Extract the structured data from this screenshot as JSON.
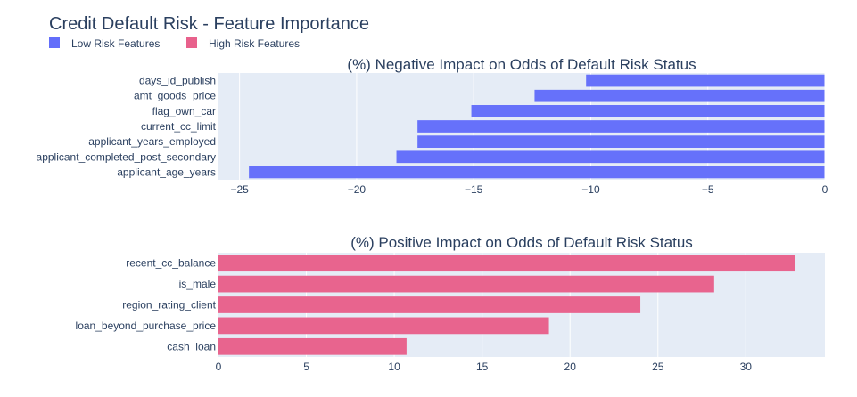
{
  "title": "Credit Default Risk - Feature Importance",
  "legend": [
    {
      "label": "Low Risk Features",
      "color": "#636efa"
    },
    {
      "label": "High Risk Features",
      "color": "#e8618c"
    }
  ],
  "colors": {
    "plot_bg": "#e5ecf6",
    "grid": "#ffffff",
    "text": "#2a3f5f"
  },
  "chart_data": [
    {
      "type": "bar",
      "orientation": "horizontal",
      "title": "(%) Negative Impact on Odds of Default Risk Status",
      "series_name": "Low Risk Features",
      "color": "#636efa",
      "categories": [
        "days_id_publish",
        "amt_goods_price",
        "flag_own_car",
        "current_cc_limit",
        "applicant_years_employed",
        "applicant_completed_post_secondary",
        "applicant_age_years"
      ],
      "values": [
        -10.2,
        -12.4,
        -15.1,
        -17.4,
        -17.4,
        -18.3,
        -24.6
      ],
      "xlim": [
        -25.9,
        0
      ],
      "ticks": [
        -25,
        -20,
        -15,
        -10,
        -5,
        0
      ],
      "tick_labels": [
        "−25",
        "−20",
        "−15",
        "−10",
        "−5",
        "0"
      ],
      "grid": true,
      "legend_position": "top-left"
    },
    {
      "type": "bar",
      "orientation": "horizontal",
      "title": "(%) Positive Impact on Odds of Default Risk Status",
      "series_name": "High Risk Features",
      "color": "#e8618c",
      "categories": [
        "recent_cc_balance",
        "is_male",
        "region_rating_client",
        "loan_beyond_purchase_price",
        "cash_loan"
      ],
      "values": [
        32.8,
        28.2,
        24.0,
        18.8,
        10.7
      ],
      "xlim": [
        0,
        34.5
      ],
      "ticks": [
        0,
        5,
        10,
        15,
        20,
        25,
        30
      ],
      "tick_labels": [
        "0",
        "5",
        "10",
        "15",
        "20",
        "25",
        "30"
      ],
      "grid": true,
      "legend_position": "top-left"
    }
  ]
}
